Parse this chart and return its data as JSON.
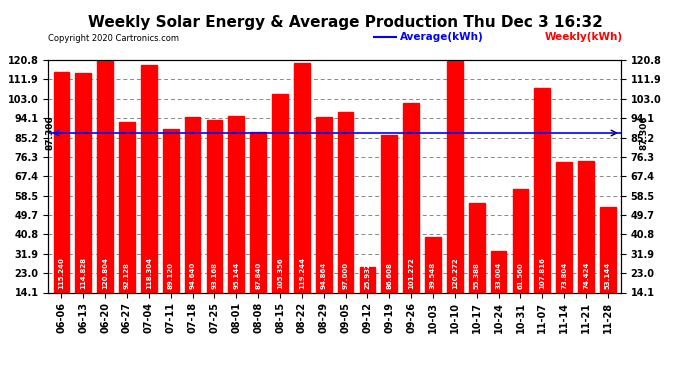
{
  "title": "Weekly Solar Energy & Average Production Thu Dec 3 16:32",
  "copyright": "Copyright 2020 Cartronics.com",
  "average_label": "Average(kWh)",
  "weekly_label": "Weekly(kWh)",
  "average_value": 87.306,
  "average_text": "87.306",
  "bar_color": "#ff0000",
  "avg_line_color": "#0000ff",
  "categories": [
    "06-06",
    "06-13",
    "06-20",
    "06-27",
    "07-04",
    "07-11",
    "07-18",
    "07-25",
    "08-01",
    "08-08",
    "08-15",
    "08-22",
    "08-29",
    "09-05",
    "09-12",
    "09-19",
    "09-26",
    "10-03",
    "10-10",
    "10-17",
    "10-24",
    "10-31",
    "11-07",
    "11-14",
    "11-21",
    "11-28"
  ],
  "values": [
    115.24,
    114.828,
    120.804,
    92.128,
    118.304,
    89.12,
    94.64,
    93.168,
    95.144,
    87.84,
    105.356,
    119.244,
    94.864,
    97.0,
    25.932,
    86.608,
    101.272,
    39.548,
    120.272,
    55.388,
    33.004,
    61.56,
    107.816,
    73.804,
    74.424,
    53.144
  ],
  "ylim_min": 14.1,
  "ylim_max": 120.8,
  "yticks": [
    14.1,
    23.0,
    31.9,
    40.8,
    49.7,
    58.5,
    67.4,
    76.3,
    85.2,
    94.1,
    103.0,
    111.9,
    120.8
  ],
  "background_color": "#ffffff",
  "grid_color": "#888888",
  "title_fontsize": 11,
  "tick_fontsize": 7,
  "val_fontsize": 5.0
}
